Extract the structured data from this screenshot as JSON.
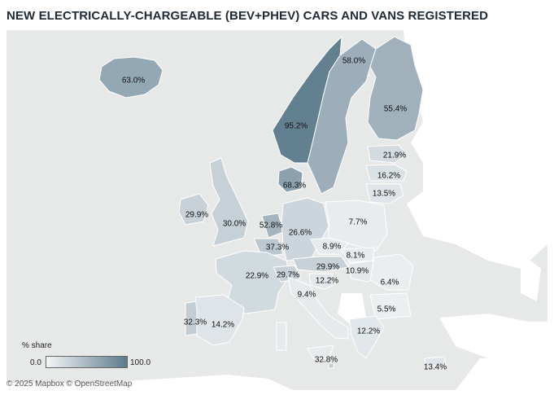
{
  "title": "NEW ELECTRICALLY-CHARGEABLE (BEV+PHEV) CARS AND VANS REGISTERED",
  "legend": {
    "title": "% share",
    "min": "0.0",
    "max": "100.0",
    "color_low": "#f4f6f7",
    "color_high": "#5c7a8c"
  },
  "attribution": "© 2025 Mapbox © OpenStreetMap",
  "regions": [
    {
      "id": "iceland",
      "label": "63.0%",
      "value": 63.0
    },
    {
      "id": "norway",
      "label": "95.2%",
      "value": 95.2
    },
    {
      "id": "sweden",
      "label": "58.0%",
      "value": 58.0
    },
    {
      "id": "finland",
      "label": "55.4%",
      "value": 55.4
    },
    {
      "id": "estonia",
      "label": "21.9%",
      "value": 21.9
    },
    {
      "id": "latvia",
      "label": "16.2%",
      "value": 16.2
    },
    {
      "id": "lithuania",
      "label": "13.5%",
      "value": 13.5
    },
    {
      "id": "denmark",
      "label": "68.3%",
      "value": 68.3
    },
    {
      "id": "ireland",
      "label": "29.9%",
      "value": 29.9
    },
    {
      "id": "united-kingdom",
      "label": "30.0%",
      "value": 30.0
    },
    {
      "id": "netherlands",
      "label": "52.8%",
      "value": 52.8
    },
    {
      "id": "belgium",
      "label": "37.3%",
      "value": 37.3
    },
    {
      "id": "germany",
      "label": "26.6%",
      "value": 26.6
    },
    {
      "id": "poland",
      "label": "7.7%",
      "value": 7.7
    },
    {
      "id": "czechia",
      "label": "8.9%",
      "value": 8.9
    },
    {
      "id": "slovakia",
      "label": "8.1%",
      "value": 8.1
    },
    {
      "id": "austria",
      "label": "29.9%",
      "value": 29.9
    },
    {
      "id": "hungary",
      "label": "10.9%",
      "value": 10.9
    },
    {
      "id": "france",
      "label": "22.9%",
      "value": 22.9
    },
    {
      "id": "switzerland",
      "label": "29.7%",
      "value": 29.7
    },
    {
      "id": "slovenia",
      "label": "12.2%",
      "value": 12.2
    },
    {
      "id": "romania",
      "label": "6.4%",
      "value": 6.4
    },
    {
      "id": "italy",
      "label": "9.4%",
      "value": 9.4
    },
    {
      "id": "bulgaria",
      "label": "5.5%",
      "value": 5.5
    },
    {
      "id": "portugal",
      "label": "32.3%",
      "value": 32.3
    },
    {
      "id": "spain",
      "label": "14.2%",
      "value": 14.2
    },
    {
      "id": "greece",
      "label": "12.2%",
      "value": 12.2
    },
    {
      "id": "malta",
      "label": "32.8%",
      "value": 32.8
    },
    {
      "id": "cyprus",
      "label": "13.4%",
      "value": 13.4
    }
  ]
}
